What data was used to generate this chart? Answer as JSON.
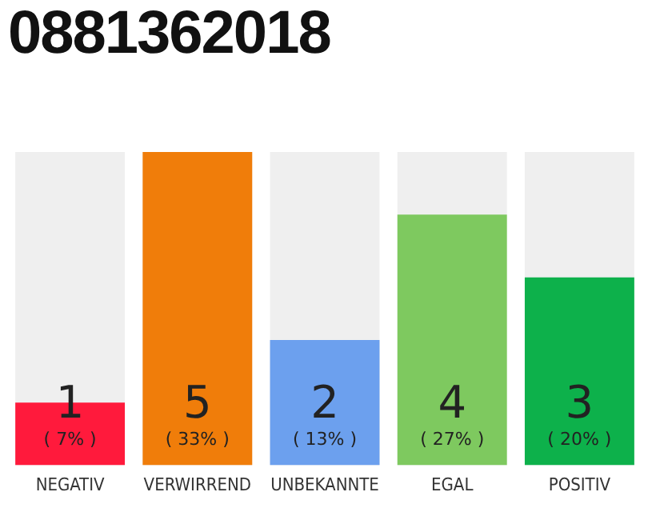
{
  "chart_data": {
    "type": "bar",
    "title": "0881362018",
    "categories": [
      "NEGATIV",
      "VERWIRREND",
      "UNBEKANNTE",
      "EGAL",
      "POSITIV"
    ],
    "values": [
      1,
      5,
      2,
      4,
      3
    ],
    "colors": [
      "#ff1a3c",
      "#f07d0a",
      "#6ca0ee",
      "#7ec95f",
      "#0db14b"
    ],
    "ylim": [
      0,
      5
    ],
    "tick_labels": "x",
    "grid": false,
    "legend": false,
    "data_labels": true,
    "annotations": [
      "( 7% )",
      "( 33% )",
      "( 13% )",
      "( 27% )",
      "( 20% )"
    ]
  }
}
